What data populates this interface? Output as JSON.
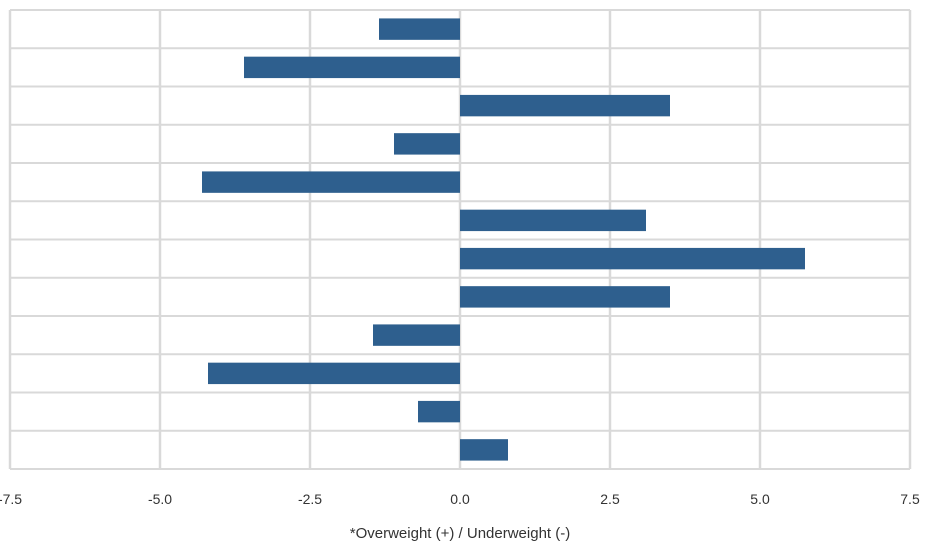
{
  "chart_data": {
    "type": "bar",
    "orientation": "horizontal",
    "title": "",
    "xlabel": "*Overweight (+) / Underweight (-)",
    "ylabel": "",
    "xlim": [
      -7.5,
      7.5
    ],
    "xticks": [
      "-7.5",
      "-5.0",
      "-2.5",
      "0.0",
      "2.5",
      "5.0",
      "7.5"
    ],
    "xtick_values": [
      -7.5,
      -5.0,
      -2.5,
      0.0,
      2.5,
      5.0,
      7.5
    ],
    "grid": true,
    "legend": "none",
    "bar_color": "#2e5f8e",
    "grid_color": "#d9d9d9",
    "categories": [
      "",
      "",
      "",
      "",
      "",
      "",
      "",
      "",
      "",
      "",
      "",
      ""
    ],
    "values": [
      -1.35,
      -3.6,
      3.5,
      -1.1,
      -4.3,
      3.1,
      5.75,
      3.5,
      -1.45,
      -4.2,
      -0.7,
      0.8
    ]
  }
}
